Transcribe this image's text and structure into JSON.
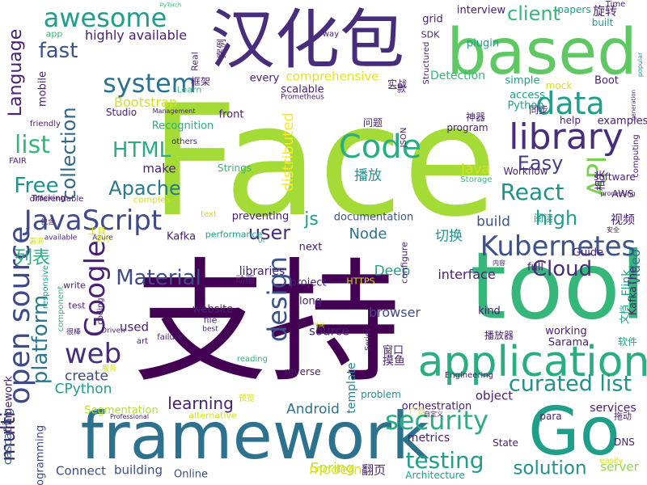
{
  "palette": {
    "c0": "#440154",
    "c1": "#3b528b",
    "c2": "#21918c",
    "c3": "#5ec962",
    "c4": "#a5db36",
    "c5": "#fde725",
    "c6": "#2c728e",
    "c7": "#472d7b",
    "c8": "#35b779",
    "c9": "#28ae80",
    "c10": "#d2e21b",
    "c11": "#3e4a89",
    "c12": "#1f9e89",
    "c13": "#482173",
    "c14": "#31688e",
    "c15": "#7ad151",
    "c16": "#b5de2b",
    "c17": "#26828e",
    "c18": "#433e85",
    "c19": "#2a788e",
    "c20": "#fbe723",
    "c21": "#8fd744",
    "c22": "#46337f",
    "c23": "#1fa187",
    "c24": "#e5e419"
  },
  "words": [
    {
      "text": "Face",
      "color": "c4"
    },
    {
      "text": "支持",
      "color": "c0"
    },
    {
      "text": "framework",
      "color": "c6"
    },
    {
      "text": "tool",
      "color": "c8"
    },
    {
      "text": "汉化包",
      "color": "c7"
    },
    {
      "text": "based",
      "color": "c3"
    },
    {
      "text": "Go",
      "color": "c12"
    },
    {
      "text": "application",
      "color": "c9"
    },
    {
      "text": "Kubernetes",
      "color": "c1"
    },
    {
      "text": "library",
      "color": "c7"
    },
    {
      "text": "data",
      "color": "c12"
    },
    {
      "text": "open source",
      "color": "c11"
    },
    {
      "text": "awesome",
      "color": "c12"
    },
    {
      "text": "JavaScript",
      "color": "c11"
    },
    {
      "text": "web",
      "color": "c7"
    },
    {
      "text": "Code",
      "color": "c9"
    },
    {
      "text": "API",
      "color": "c15"
    },
    {
      "text": "security",
      "color": "c9"
    },
    {
      "text": "testing",
      "color": "c12"
    },
    {
      "text": "curated list",
      "color": "c2"
    },
    {
      "text": "system",
      "color": "c6"
    },
    {
      "text": "Google",
      "color": "c13"
    },
    {
      "text": "React",
      "color": "c2"
    },
    {
      "text": "Cloud",
      "color": "c7"
    },
    {
      "text": "platform",
      "color": "c19"
    },
    {
      "text": "Language",
      "color": "c13"
    },
    {
      "text": "design",
      "color": "c1"
    },
    {
      "text": "Material",
      "color": "c11"
    },
    {
      "text": "client",
      "color": "c8"
    },
    {
      "text": "list",
      "color": "c8"
    },
    {
      "text": "collection",
      "color": "c14"
    },
    {
      "text": "Free",
      "color": "c2"
    },
    {
      "text": "fast",
      "color": "c1"
    },
    {
      "text": "HTML",
      "color": "c9"
    },
    {
      "text": "Apache",
      "color": "c19"
    },
    {
      "text": "Easy",
      "color": "c18"
    },
    {
      "text": "high",
      "color": "c12"
    },
    {
      "text": "solution",
      "color": "c2"
    },
    {
      "text": "learning",
      "color": "c13"
    },
    {
      "text": "multi",
      "color": "c13"
    },
    {
      "text": "列表",
      "color": "c9"
    },
    {
      "text": "js",
      "color": "c12"
    },
    {
      "text": "Node",
      "color": "c6"
    },
    {
      "text": "user",
      "color": "c7"
    },
    {
      "text": "Deep",
      "color": "c23"
    },
    {
      "text": "create",
      "color": "c11"
    },
    {
      "text": "services",
      "color": "c13"
    },
    {
      "text": "video",
      "color": "c6"
    },
    {
      "text": "视频",
      "color": "c13"
    },
    {
      "text": "旋转",
      "color": "c13"
    },
    {
      "text": "播放",
      "color": "c2"
    },
    {
      "text": "切换",
      "color": "c2"
    },
    {
      "text": "Android",
      "color": "c6"
    },
    {
      "text": "browser",
      "color": "c11"
    },
    {
      "text": "interface",
      "color": "c13"
    },
    {
      "text": "Java",
      "color": "c10"
    },
    {
      "text": "build",
      "color": "c1"
    },
    {
      "text": "distributed",
      "color": "c5"
    },
    {
      "text": "Spring",
      "color": "c16"
    },
    {
      "text": "Bootstrap",
      "color": "c10"
    },
    {
      "text": "modern",
      "color": "c24"
    },
    {
      "text": "CPython",
      "color": "c12"
    },
    {
      "text": "highly available",
      "color": "c13"
    },
    {
      "text": "comprehensive",
      "color": "c24"
    },
    {
      "text": "Detection",
      "color": "c8"
    },
    {
      "text": "programming",
      "color": "c11"
    },
    {
      "text": "cascading",
      "color": "c14"
    },
    {
      "text": "Connect",
      "color": "c11"
    },
    {
      "text": "building",
      "color": "c11"
    },
    {
      "text": "Online",
      "color": "c11"
    },
    {
      "text": "Segmentation",
      "color": "c16"
    },
    {
      "text": "Recognition",
      "color": "c9"
    },
    {
      "text": "libraries",
      "color": "c13"
    },
    {
      "text": "Studio",
      "color": "c13"
    },
    {
      "text": "make",
      "color": "c13"
    },
    {
      "text": "server",
      "color": "c21"
    },
    {
      "text": "metrics",
      "color": "c13"
    },
    {
      "text": "翻页",
      "color": "c13"
    },
    {
      "text": "used",
      "color": "c13"
    },
    {
      "text": "website",
      "color": "c13"
    },
    {
      "text": "template",
      "color": "c17"
    },
    {
      "text": "object",
      "color": "c13"
    },
    {
      "text": "orchestration",
      "color": "c13"
    },
    {
      "text": "Architecture",
      "color": "c12"
    },
    {
      "text": "Flink",
      "color": "c23"
    },
    {
      "text": "Boot",
      "color": "c13"
    },
    {
      "text": "access",
      "color": "c12"
    },
    {
      "text": "simple",
      "color": "c12"
    },
    {
      "text": "mobile",
      "color": "c13"
    },
    {
      "text": "Python",
      "color": "c12"
    },
    {
      "text": "plugin",
      "color": "c12"
    },
    {
      "text": "interview",
      "color": "c13"
    },
    {
      "text": "grid",
      "color": "c13"
    },
    {
      "text": "front",
      "color": "c13"
    },
    {
      "text": "framework",
      "color": "c13"
    },
    {
      "text": "Kafka",
      "color": "c13"
    },
    {
      "text": "preventing",
      "color": "c13"
    },
    {
      "text": "documentation",
      "color": "c1"
    },
    {
      "text": "next",
      "color": "c13"
    },
    {
      "text": "project",
      "color": "c13"
    },
    {
      "text": "long",
      "color": "c13"
    },
    {
      "text": "every",
      "color": "c13"
    },
    {
      "text": "scalable",
      "color": "c13"
    },
    {
      "text": "working",
      "color": "c13"
    },
    {
      "text": "examples",
      "color": "c13"
    },
    {
      "text": "software",
      "color": "c13"
    },
    {
      "text": "Workflow",
      "color": "c13"
    },
    {
      "text": "AWS",
      "color": "c13"
    },
    {
      "text": "Guide",
      "color": "c13"
    },
    {
      "text": "full",
      "color": "c13"
    },
    {
      "text": "kind",
      "color": "c13"
    },
    {
      "text": "Sarama",
      "color": "c13"
    },
    {
      "text": "papers",
      "color": "c12"
    },
    {
      "text": "help",
      "color": "c13"
    },
    {
      "text": "mock",
      "color": "c10"
    },
    {
      "text": "program",
      "color": "c13"
    },
    {
      "text": "reverse",
      "color": "c13"
    },
    {
      "text": "problem",
      "color": "c2"
    },
    {
      "text": "DNS",
      "color": "c13"
    },
    {
      "text": "State",
      "color": "c13"
    },
    {
      "text": "para",
      "color": "c13"
    },
    {
      "text": "Time",
      "color": "c13"
    },
    {
      "text": "built",
      "color": "c12"
    },
    {
      "text": "SDK",
      "color": "c13"
    },
    {
      "text": "way",
      "color": "c13"
    },
    {
      "text": "app",
      "color": "c8"
    },
    {
      "text": "Real",
      "color": "c13"
    },
    {
      "text": "Learn",
      "color": "c8"
    },
    {
      "text": "Prometheus",
      "color": "c13"
    },
    {
      "text": "Tracking",
      "color": "c13"
    },
    {
      "text": "FAIR",
      "color": "c13"
    },
    {
      "text": "friendly",
      "color": "c13"
    },
    {
      "text": "differentiable",
      "color": "c13"
    },
    {
      "text": "available",
      "color": "c13"
    },
    {
      "text": "Azure",
      "color": "c13"
    },
    {
      "text": "responsive",
      "color": "c12"
    },
    {
      "text": "write",
      "color": "c13"
    },
    {
      "text": "test",
      "color": "c13"
    },
    {
      "text": "component",
      "color": "c8"
    },
    {
      "text": "art",
      "color": "c13"
    },
    {
      "text": "file",
      "color": "c13"
    },
    {
      "text": "best",
      "color": "c13"
    },
    {
      "text": "failure",
      "color": "c13"
    },
    {
      "text": "coding",
      "color": "c13"
    },
    {
      "text": "Driven",
      "color": "c13"
    },
    {
      "text": "others",
      "color": "c13"
    },
    {
      "text": "Strings",
      "color": "c8"
    },
    {
      "text": "complex",
      "color": "c10"
    },
    {
      "text": "text",
      "color": "c10"
    },
    {
      "text": "performance",
      "color": "c12"
    },
    {
      "text": "UI",
      "color": "c12"
    },
    {
      "text": "Management",
      "color": "c13"
    },
    {
      "text": "Professional",
      "color": "c13"
    },
    {
      "text": "alternative",
      "color": "c10"
    },
    {
      "text": "reading",
      "color": "c8"
    },
    {
      "text": "HTTPS",
      "color": "c10"
    },
    {
      "text": "Series",
      "color": "c13"
    },
    {
      "text": "Engineering",
      "color": "c13"
    },
    {
      "text": "Storage",
      "color": "c8"
    },
    {
      "text": "processing",
      "color": "c13"
    },
    {
      "text": "JSON",
      "color": "c13"
    },
    {
      "text": "configure",
      "color": "c13"
    },
    {
      "text": "Structured",
      "color": "c13"
    },
    {
      "text": "easily",
      "color": "c10"
    },
    {
      "text": "computing",
      "color": "c13"
    },
    {
      "text": "popular",
      "color": "c12"
    },
    {
      "text": "generation",
      "color": "c13"
    },
    {
      "text": "PyTorch",
      "color": "c8"
    },
    {
      "text": "KafkaThe",
      "color": "c13"
    },
    {
      "text": "source",
      "color": "c13"
    },
    {
      "text": "框架",
      "color": "c13"
    },
    {
      "text": "案例",
      "color": "c13"
    },
    {
      "text": "实战",
      "color": "c13"
    },
    {
      "text": "一款",
      "color": "c13"
    },
    {
      "text": "神器",
      "color": "c13"
    },
    {
      "text": "问题",
      "color": "c13"
    },
    {
      "text": "同步",
      "color": "c13"
    },
    {
      "text": "阅读",
      "color": "c12"
    },
    {
      "text": "相关",
      "color": "c13"
    },
    {
      "text": "安全",
      "color": "c13"
    },
    {
      "text": "内容",
      "color": "c13"
    },
    {
      "text": "文档",
      "color": "c12"
    },
    {
      "text": "软件",
      "color": "c12"
    },
    {
      "text": "动画",
      "color": "c13"
    },
    {
      "text": "工具",
      "color": "c10"
    },
    {
      "text": "包含",
      "color": "c13"
    },
    {
      "text": "窗口",
      "color": "c13"
    },
    {
      "text": "摸鱼",
      "color": "c13"
    },
    {
      "text": "广告",
      "color": "c10"
    },
    {
      "text": "播放器",
      "color": "c13"
    },
    {
      "text": "预览",
      "color": "c10"
    },
    {
      "text": "拖动",
      "color": "c13"
    },
    {
      "text": "服务",
      "color": "c10"
    },
    {
      "text": "自定义",
      "color": "c13"
    },
    {
      "text": "时间",
      "color": "c10"
    },
    {
      "text": "很棒",
      "color": "c13"
    },
    {
      "text": "漏洞",
      "color": "c10"
    },
    {
      "text": "支付",
      "color": "c10"
    },
    {
      "text": "系统",
      "color": "c13"
    }
  ]
}
